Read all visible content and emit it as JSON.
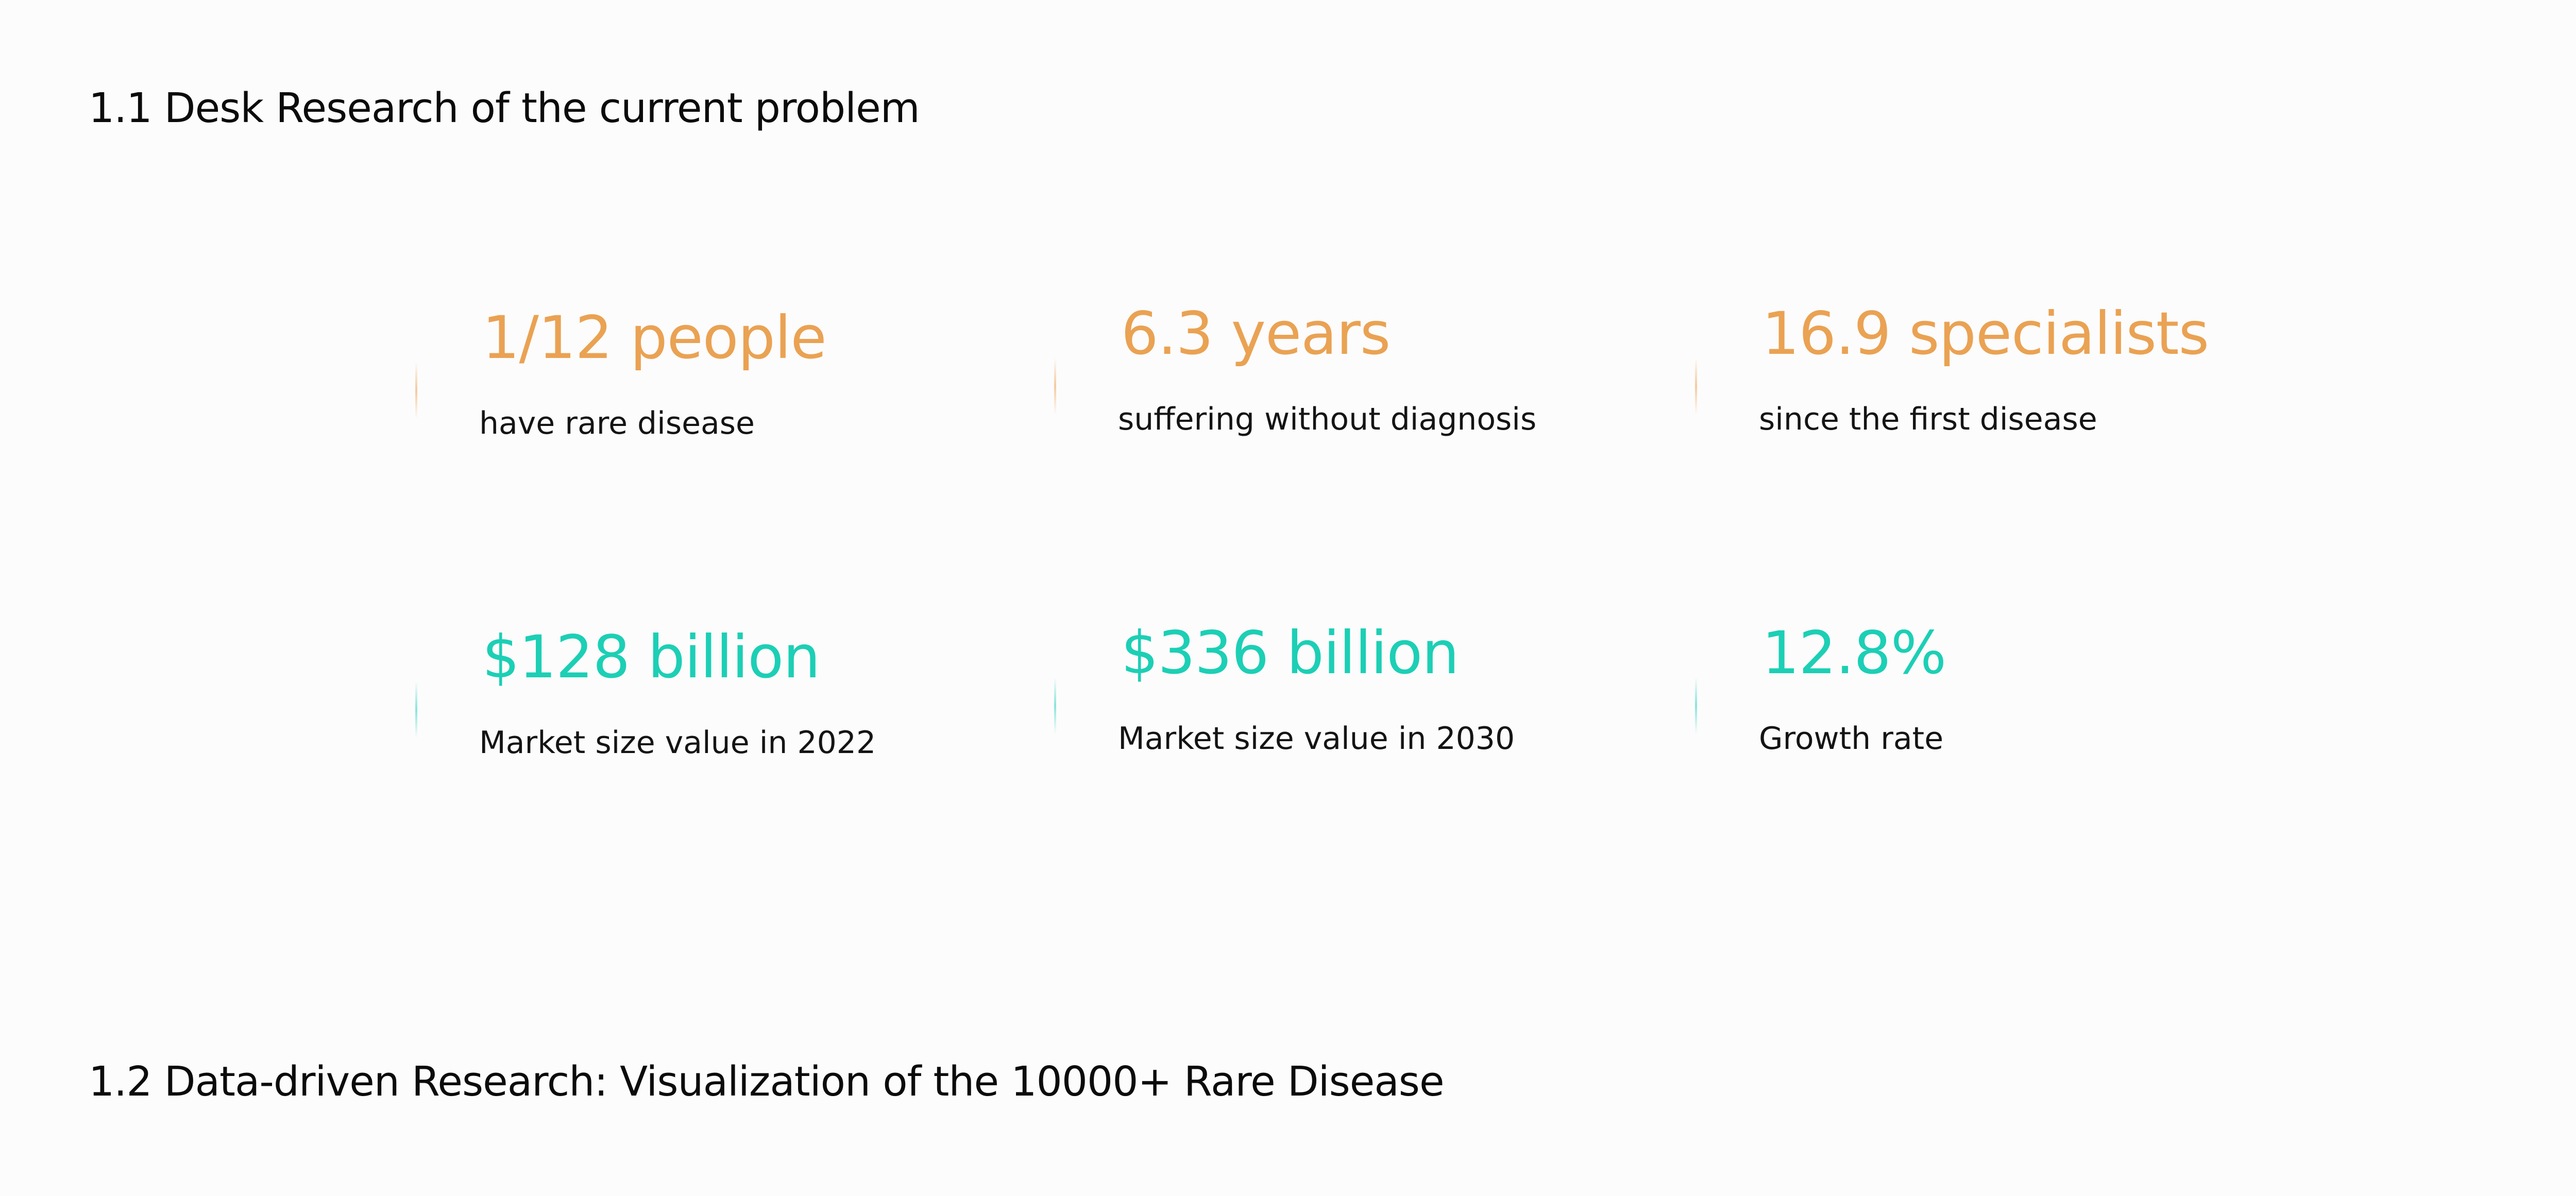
{
  "sections": [
    {
      "title": "1.1 Desk Research of the current problem"
    },
    {
      "title": "1.2 Data-driven Research: Visualization of the 10000+ Rare Disease"
    }
  ],
  "stats": [
    {
      "value": "1/12 people",
      "label": "have rare disease"
    },
    {
      "value": "6.3 years",
      "label": "suffering without diagnosis"
    },
    {
      "value": "16.9 specialists",
      "label": "since the first disease"
    },
    {
      "value": "$128 billion",
      "label": "Market size value in 2022"
    },
    {
      "value": "$336 billion",
      "label": "Market size value in 2030"
    },
    {
      "value": "12.8%",
      "label": "Growth rate"
    }
  ],
  "colors": {
    "problem_accent": "#eaa253",
    "market_accent": "#1ccfb5",
    "text": "#0b0b0b",
    "background": "#fcfcfc"
  }
}
